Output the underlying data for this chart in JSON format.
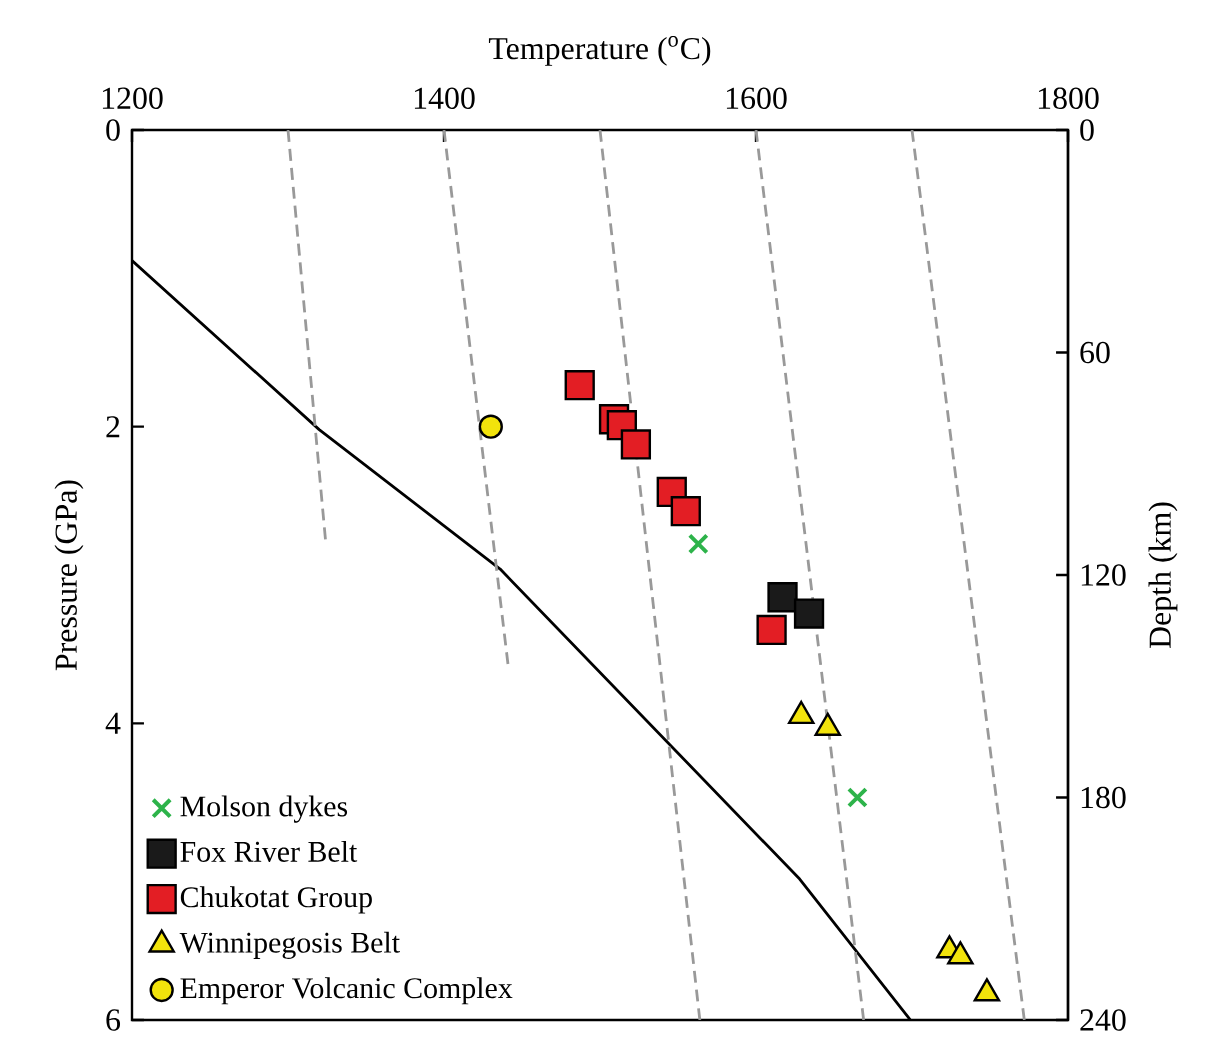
{
  "chart_data": {
    "type": "scatter",
    "xlabel": "Temperature ($^{o}$C)",
    "ylabel": "Pressure (GPa)",
    "y2label": "Depth (km)",
    "xlim": [
      1200,
      1800
    ],
    "xticks": [
      1200,
      1400,
      1600,
      1800
    ],
    "ylim": [
      6,
      0
    ],
    "yticks": [
      0,
      2,
      4,
      6
    ],
    "y2lim": [
      240,
      0
    ],
    "y2ticks": [
      0,
      60,
      120,
      180,
      240
    ],
    "legend": "bottom left",
    "grid": false,
    "series": [
      {
        "name": "Molson dykes",
        "marker": "cross",
        "color": "#2db34a",
        "x": [
          1563,
          1665
        ],
        "values": [
          2.79,
          4.5
        ]
      },
      {
        "name": "Fox River Belt",
        "marker": "square",
        "color": "#1a1a1a",
        "x": [
          1617,
          1634
        ],
        "values": [
          3.15,
          3.26
        ]
      },
      {
        "name": "Chukotat Group",
        "marker": "square",
        "color": "#e31e24",
        "x": [
          1487,
          1509,
          1514,
          1523,
          1546,
          1555,
          1610
        ],
        "values": [
          1.72,
          1.95,
          1.99,
          2.12,
          2.44,
          2.57,
          3.37
        ]
      },
      {
        "name": "Winnipegosis Belt",
        "marker": "triangle",
        "color": "#f2e30c",
        "x": [
          1629,
          1646,
          1724,
          1731,
          1748
        ],
        "values": [
          3.95,
          4.03,
          5.53,
          5.57,
          5.82
        ]
      },
      {
        "name": "Emperor Volcanic Complex",
        "marker": "circle",
        "color": "#f2e30c",
        "x": [
          1430
        ],
        "values": [
          2.0
        ]
      },
      {
        "type": "line",
        "line_style": "solid",
        "color": "#000000",
        "x": [
          1200,
          1320,
          1436,
          1628,
          1699
        ],
        "values": [
          0.88,
          2.02,
          2.96,
          5.05,
          6
        ]
      },
      {
        "type": "line",
        "line_style": "dashed",
        "color": "#999999",
        "x": [
          1300,
          1324
        ],
        "values": [
          0,
          2.76
        ]
      },
      {
        "type": "line",
        "line_style": "dashed",
        "color": "#999999",
        "x": [
          1400,
          1441
        ],
        "values": [
          0,
          3.6
        ]
      },
      {
        "type": "line",
        "line_style": "dashed",
        "color": "#999999",
        "x": [
          1500,
          1564
        ],
        "values": [
          0,
          6
        ]
      },
      {
        "type": "line",
        "line_style": "dashed",
        "color": "#999999",
        "x": [
          1600,
          1669
        ],
        "values": [
          0,
          6
        ]
      },
      {
        "type": "line",
        "line_style": "dashed",
        "color": "#999999",
        "x": [
          1700,
          1772
        ],
        "values": [
          0,
          6
        ]
      }
    ]
  }
}
